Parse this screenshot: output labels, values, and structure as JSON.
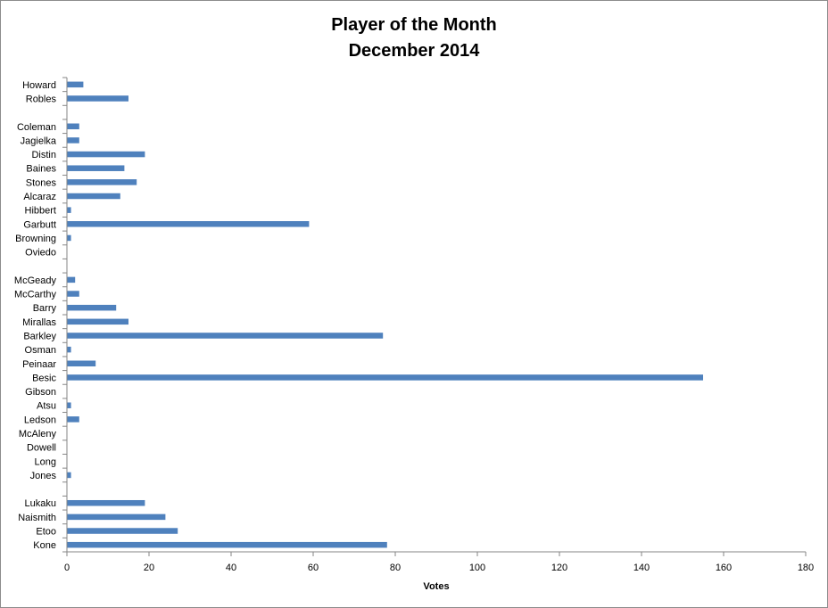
{
  "chart_data": {
    "type": "bar",
    "orientation": "horizontal",
    "title": "Player of the Month",
    "subtitle": "December 2014",
    "xlabel": "Votes",
    "ylabel": "",
    "xlim": [
      0,
      180
    ],
    "x_ticks": [
      0,
      20,
      40,
      60,
      80,
      100,
      120,
      140,
      160,
      180
    ],
    "x_tick_labels": [
      "0",
      "20",
      "40",
      "60",
      "80",
      "100",
      "120",
      "140",
      "160",
      "180"
    ],
    "grid": false,
    "legend": "none",
    "bar_color": "#4F81BD",
    "categories": [
      "Kone",
      "Etoo",
      "Naismith",
      "Lukaku",
      "",
      "Jones",
      "Long",
      "Dowell",
      "McAleny",
      "Ledson",
      "Atsu",
      "Gibson",
      "Besic",
      "Peinaar",
      "Osman",
      "Barkley",
      "Mirallas",
      "Barry",
      "McCarthy",
      "McGeady",
      "",
      "Oviedo",
      "Browning",
      "Garbutt",
      "Hibbert",
      "Alcaraz",
      "Stones",
      "Baines",
      "Distin",
      "Jagielka",
      "Coleman",
      "",
      "Robles",
      "Howard"
    ],
    "values": [
      78,
      27,
      24,
      19,
      0,
      1,
      0,
      0,
      0,
      3,
      1,
      0,
      155,
      7,
      1,
      77,
      15,
      12,
      3,
      2,
      0,
      0,
      1,
      59,
      1,
      13,
      17,
      14,
      19,
      3,
      3,
      0,
      15,
      4
    ]
  }
}
